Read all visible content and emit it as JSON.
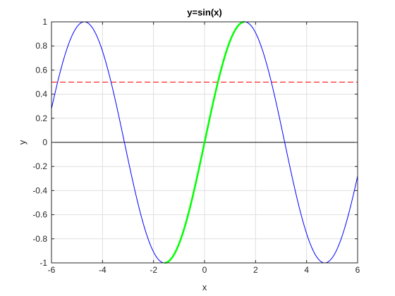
{
  "chart_data": {
    "type": "line",
    "title": "y=sin(x)",
    "xlabel": "x",
    "ylabel": "y",
    "xlim": [
      -6,
      6
    ],
    "ylim": [
      -1,
      1
    ],
    "xticks": [
      -6,
      -4,
      -2,
      0,
      2,
      4,
      6
    ],
    "xtick_labels": [
      "-6",
      "-4",
      "-2",
      "0",
      "2",
      "4",
      "6"
    ],
    "yticks": [
      -1,
      -0.8,
      -0.6,
      -0.4,
      -0.2,
      0,
      0.2,
      0.4,
      0.6,
      0.8,
      1
    ],
    "ytick_labels": [
      "-1",
      "-0.8",
      "-0.6",
      "-0.4",
      "-0.2",
      "0",
      "0.2",
      "0.4",
      "0.6",
      "0.8",
      "1"
    ],
    "grid": true,
    "series": [
      {
        "function": "sin(x)",
        "x_range": [
          -6,
          6
        ],
        "color": "#0000ff",
        "line_style": "solid"
      },
      {
        "function": "sin(x)",
        "x_range": [
          -1.5708,
          1.5708
        ],
        "color": "#00ff00",
        "line_style": "solid"
      }
    ],
    "reference_lines": [
      {
        "orientation": "horizontal",
        "y": 0.5,
        "color": "#ff0000",
        "line_style": "dashed"
      },
      {
        "orientation": "horizontal",
        "y": 0,
        "color": "#000000",
        "line_style": "solid"
      }
    ]
  }
}
